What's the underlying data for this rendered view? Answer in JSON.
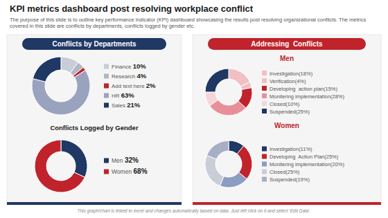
{
  "title": "KPI metrics dashboard post resolving workplace conflict",
  "subtitle": "The purpose of this slide is to outline key performance indicator (KPI) dashboard showcasing the results post resolving organizational conflicts. The metrics covered in this slide are conflicts by departments, conflicts logged by gender etc.",
  "footnote": "This graph/chart is linked to excel and changes automatically based on data. Just left click on it and select 'Edit Data'.",
  "annotations": [
    "Addressing  Conflicts"
  ],
  "chart_data": [
    {
      "type": "pie",
      "title": "Conflicts by Departments",
      "categories": [
        "Finance",
        "Research",
        "Add text here",
        "HR",
        "Sales"
      ],
      "values": [
        10,
        4,
        2,
        63,
        21
      ],
      "value_labels": [
        "10%",
        "4%",
        "2%",
        "63%",
        "21%"
      ],
      "data_labels": true,
      "colors": [
        "#c8cdd8",
        "#b0b7c8",
        "#c0232b",
        "#9aa3be",
        "#1f3864"
      ]
    },
    {
      "type": "pie",
      "title": "Conflicts Logged by Gender",
      "categories": [
        "Men",
        "Women"
      ],
      "values": [
        32,
        68
      ],
      "value_labels": [
        "32%",
        "68%"
      ],
      "data_labels": true,
      "colors": [
        "#1f3864",
        "#c0232b"
      ]
    },
    {
      "type": "pie",
      "title": "Men",
      "categories": [
        "Investigation",
        "Verification",
        "Developing  action plan",
        "Monitering implementation",
        "Closed",
        "Suspended"
      ],
      "values": [
        18,
        4,
        15,
        28,
        10,
        25
      ],
      "value_labels": [
        "(18%)",
        "(4%)",
        "(15%)",
        "(28%)",
        "(10%)",
        "(25%)"
      ],
      "data_labels": true,
      "colors": [
        "#f2bfc4",
        "#f2bfc4",
        "#c0232b",
        "#e8909a",
        "#f5d5d8",
        "#1f3864"
      ]
    },
    {
      "type": "pie",
      "title": "Women",
      "categories": [
        "Investigation",
        "Developing  Action Plan",
        "Monitering implementation",
        "Closed",
        "Suspended"
      ],
      "values": [
        11,
        25,
        20,
        25,
        19
      ],
      "value_labels": [
        "(11%)",
        "(25%)",
        "(20%)",
        "(25%)",
        "(19%)"
      ],
      "data_labels": true,
      "colors": [
        "#1f3864",
        "#c0232b",
        "#8b9dc3",
        "#c8cdd8",
        "#a8afc5"
      ]
    }
  ]
}
